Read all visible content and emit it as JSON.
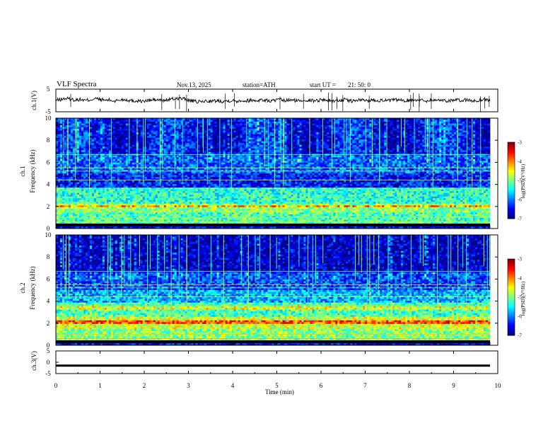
{
  "header": {
    "title": "VLF Spectra",
    "date": "Nov.13, 2025",
    "station": "station=ATH",
    "start_label": "start UT =",
    "start_time": "21: 50: 0"
  },
  "chart_data": [
    {
      "type": "line",
      "name": "ch1-waveform",
      "ylabel": "ch.1(V)",
      "ylim": [
        -5,
        5
      ],
      "yticks": [
        "5",
        "-5"
      ],
      "xlim": [
        0,
        10
      ],
      "trace": [
        0.1,
        0.4,
        0.9,
        0.6,
        0.2,
        0.5,
        0.0,
        0.3,
        0.8,
        0.5,
        0.1,
        0.2,
        -0.3,
        0.2,
        0.5,
        0.1,
        -0.2,
        -0.1,
        -0.4,
        0.0,
        0.3,
        0.2,
        -0.1,
        0.4,
        0.6,
        1.0,
        0.8,
        0.3,
        -0.3,
        -0.6,
        -0.5,
        -0.2,
        -0.4,
        -0.1,
        -0.3,
        -0.2,
        0.0,
        -0.3,
        0.1,
        -0.2,
        0.2,
        -0.1,
        0.3,
        0.0,
        -0.2,
        0.1,
        0.3,
        -0.1,
        0.2,
        0.0,
        -0.2,
        0.3,
        0.1,
        -0.1,
        0.2,
        0.4,
        0.0,
        -0.2,
        0.1,
        0.3,
        0.0,
        -0.3,
        0.2,
        0.1,
        -0.1,
        0.3,
        0.0,
        0.2,
        -0.2,
        0.1,
        0.3,
        -0.1,
        0.0,
        0.2,
        0.4,
        0.1,
        -0.1,
        0.2,
        0.0,
        0.3,
        -0.2,
        0.1,
        0.2,
        -0.1,
        0.3,
        0.0,
        -0.3,
        0.2,
        0.4,
        0.1
      ]
    },
    {
      "type": "heatmap",
      "name": "ch1-spectrogram",
      "ylabel_top": "ch.1",
      "ylabel": "Frequency (kHz)",
      "ylim": [
        0,
        10
      ],
      "yticks": [
        "0",
        "2",
        "4",
        "6",
        "8",
        "10"
      ],
      "xlim": [
        0,
        10
      ],
      "colorbar": {
        "label": "log(PSD)(V²/Hz)",
        "range": [
          -7,
          -3
        ],
        "ticks": [
          "-3",
          "-4",
          "-5",
          "-6",
          "-7"
        ]
      }
    },
    {
      "type": "heatmap",
      "name": "ch2-spectrogram",
      "ylabel_top": "ch.2",
      "ylabel": "Frequency (kHz)",
      "ylim": [
        0,
        10
      ],
      "yticks": [
        "0",
        "2",
        "4",
        "6",
        "8",
        "10"
      ],
      "xlim": [
        0,
        10
      ],
      "colorbar": {
        "label": "log(PSD)(V²/Hz)",
        "range": [
          -7,
          -3
        ],
        "ticks": [
          "-3",
          "-4",
          "-5",
          "-6",
          "-7"
        ]
      }
    },
    {
      "type": "line",
      "name": "ch3-waveform",
      "ylabel": "ch.3(V)",
      "ylim": [
        -5,
        5
      ],
      "yticks": [
        "5",
        "0",
        "-5"
      ],
      "xlim": [
        0,
        10
      ],
      "value": -1.5
    }
  ],
  "xaxis": {
    "label": "Time (min)",
    "ticks": [
      "0",
      "1",
      "2",
      "3",
      "4",
      "5",
      "6",
      "7",
      "8",
      "9",
      "10"
    ]
  }
}
